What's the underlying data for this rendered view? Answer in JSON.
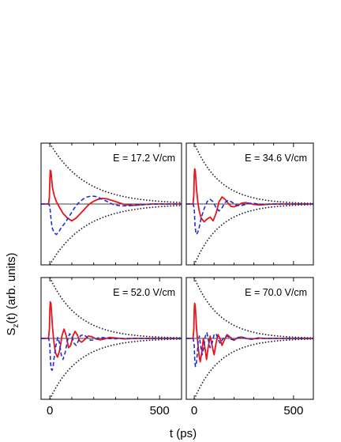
{
  "chart_data": {
    "type": "line",
    "ylabel_main": "S",
    "ylabel_sub": "z",
    "ylabel_rest": "(t) (arb. units)",
    "xlabel": "t (ps)",
    "xlim": [
      -40,
      600
    ],
    "ylim": [
      -1.3,
      1.3
    ],
    "xticks": [
      0,
      500
    ],
    "xtick_labels": [
      "0",
      "500"
    ],
    "line_colors": {
      "solid": "#e8141c",
      "dashed": "#1f2fd6",
      "dotted": "#222222"
    },
    "panels": [
      {
        "label": "E = 17.2 V/cm",
        "envelope": {
          "amplitude": 1.3,
          "decay_ps": 160
        },
        "series": [
          {
            "style": "solid",
            "x": [
              -40,
              -6,
              -2,
              0,
              2,
              5,
              8,
              12,
              20,
              30,
              45,
              60,
              80,
              100,
              120,
              140,
              160,
              180,
              200,
              220,
              240,
              260,
              280,
              300,
              320,
              340,
              360,
              380,
              400,
              430,
              460,
              500,
              550,
              600
            ],
            "y": [
              0.0,
              0.0,
              0.15,
              0.5,
              0.72,
              0.7,
              0.55,
              0.35,
              0.18,
              0.05,
              -0.08,
              -0.2,
              -0.3,
              -0.36,
              -0.3,
              -0.2,
              -0.1,
              0.0,
              0.06,
              0.1,
              0.12,
              0.11,
              0.08,
              0.05,
              0.02,
              -0.01,
              -0.02,
              -0.03,
              -0.02,
              -0.01,
              0.0,
              0.0,
              0.0,
              0.0
            ]
          },
          {
            "style": "dashed",
            "x": [
              -40,
              -5,
              0,
              5,
              10,
              20,
              30,
              40,
              50,
              70,
              90,
              110,
              130,
              150,
              170,
              190,
              210,
              230,
              250,
              270,
              290,
              310,
              330,
              350,
              380,
              410,
              440,
              480,
              520,
              560,
              600
            ],
            "y": [
              0.0,
              0.0,
              -0.05,
              -0.3,
              -0.5,
              -0.62,
              -0.65,
              -0.6,
              -0.52,
              -0.4,
              -0.25,
              -0.1,
              0.02,
              0.1,
              0.15,
              0.17,
              0.16,
              0.12,
              0.08,
              0.03,
              -0.01,
              -0.03,
              -0.04,
              -0.04,
              -0.03,
              -0.02,
              -0.01,
              0.0,
              0.0,
              0.0,
              0.0
            ]
          }
        ]
      },
      {
        "label": "E = 34.6 V/cm",
        "envelope": {
          "amplitude": 1.3,
          "decay_ps": 130
        },
        "series": [
          {
            "style": "solid",
            "x": [
              -40,
              -6,
              -2,
              0,
              2,
              5,
              8,
              12,
              18,
              25,
              35,
              50,
              65,
              80,
              95,
              110,
              125,
              140,
              155,
              170,
              185,
              200,
              220,
              240,
              260,
              280,
              300,
              330,
              360,
              400,
              450,
              500,
              600
            ],
            "y": [
              0.0,
              0.0,
              0.2,
              0.6,
              0.75,
              0.72,
              0.55,
              0.3,
              0.05,
              -0.15,
              -0.3,
              -0.38,
              -0.32,
              -0.28,
              -0.36,
              -0.2,
              0.05,
              0.15,
              0.1,
              0.02,
              -0.05,
              -0.06,
              -0.03,
              0.02,
              0.03,
              0.01,
              -0.01,
              -0.02,
              -0.01,
              0.0,
              0.0,
              0.0,
              0.0
            ]
          },
          {
            "style": "dashed",
            "x": [
              -40,
              -5,
              0,
              4,
              8,
              12,
              18,
              25,
              35,
              50,
              65,
              80,
              95,
              110,
              125,
              140,
              155,
              170,
              190,
              210,
              230,
              250,
              270,
              290,
              320,
              350,
              380,
              420,
              460,
              520,
              600
            ],
            "y": [
              0.0,
              0.0,
              -0.1,
              -0.45,
              -0.6,
              -0.65,
              -0.6,
              -0.5,
              -0.3,
              -0.1,
              0.05,
              0.1,
              0.05,
              -0.08,
              -0.15,
              -0.08,
              0.03,
              0.08,
              0.04,
              -0.02,
              -0.04,
              -0.02,
              0.01,
              0.02,
              0.0,
              -0.01,
              0.0,
              0.0,
              0.0,
              0.0,
              0.0
            ]
          }
        ]
      },
      {
        "label": "E = 52.0 V/cm",
        "envelope": {
          "amplitude": 1.3,
          "decay_ps": 130
        },
        "series": [
          {
            "style": "solid",
            "x": [
              -40,
              -6,
              -2,
              0,
              2,
              5,
              8,
              12,
              18,
              25,
              35,
              45,
              55,
              65,
              75,
              85,
              95,
              105,
              115,
              125,
              135,
              145,
              160,
              175,
              190,
              210,
              230,
              250,
              270,
              300,
              340,
              380,
              440,
              500,
              600
            ],
            "y": [
              0.0,
              0.0,
              0.2,
              0.6,
              0.78,
              0.75,
              0.55,
              0.25,
              -0.05,
              -0.3,
              -0.4,
              -0.25,
              0.05,
              0.2,
              0.05,
              -0.2,
              -0.15,
              0.05,
              0.15,
              0.08,
              -0.05,
              -0.08,
              -0.02,
              0.05,
              0.04,
              -0.01,
              -0.03,
              -0.01,
              0.02,
              0.01,
              -0.01,
              0.0,
              0.0,
              0.0,
              0.0
            ]
          },
          {
            "style": "dashed",
            "x": [
              -40,
              -5,
              0,
              3,
              6,
              10,
              15,
              20,
              28,
              36,
              44,
              52,
              60,
              70,
              80,
              90,
              100,
              110,
              120,
              130,
              140,
              155,
              170,
              185,
              200,
              220,
              240,
              260,
              290,
              320,
              360,
              420,
              500,
              600
            ],
            "y": [
              0.0,
              0.0,
              -0.15,
              -0.5,
              -0.65,
              -0.68,
              -0.6,
              -0.4,
              -0.15,
              0.02,
              -0.1,
              -0.35,
              -0.45,
              -0.3,
              -0.05,
              0.1,
              0.05,
              -0.1,
              -0.15,
              -0.05,
              0.06,
              0.08,
              0.02,
              -0.04,
              -0.03,
              0.01,
              0.02,
              0.0,
              -0.01,
              0.0,
              0.0,
              0.0,
              0.0,
              0.0
            ]
          }
        ]
      },
      {
        "label": "E = 70.0 V/cm",
        "envelope": {
          "amplitude": 1.3,
          "decay_ps": 130
        },
        "series": [
          {
            "style": "solid",
            "x": [
              -40,
              -6,
              -2,
              0,
              2,
              5,
              8,
              12,
              18,
              24,
              30,
              38,
              46,
              54,
              62,
              70,
              80,
              90,
              100,
              110,
              120,
              130,
              140,
              150,
              165,
              180,
              200,
              220,
              240,
              260,
              290,
              320,
              360,
              420,
              500,
              600
            ],
            "y": [
              0.0,
              0.0,
              0.2,
              0.6,
              0.75,
              0.7,
              0.5,
              0.2,
              -0.1,
              -0.35,
              -0.5,
              -0.3,
              0.0,
              -0.2,
              -0.45,
              -0.2,
              0.05,
              -0.15,
              -0.35,
              -0.1,
              0.08,
              0.0,
              -0.15,
              -0.05,
              0.08,
              0.03,
              -0.04,
              0.02,
              0.03,
              0.0,
              -0.02,
              0.01,
              0.0,
              0.0,
              0.0,
              0.0
            ]
          },
          {
            "style": "dashed",
            "x": [
              -40,
              -5,
              0,
              3,
              6,
              10,
              15,
              20,
              26,
              32,
              40,
              48,
              56,
              64,
              72,
              80,
              90,
              100,
              110,
              120,
              130,
              140,
              155,
              170,
              185,
              200,
              220,
              240,
              270,
              300,
              340,
              400,
              480,
              600
            ],
            "y": [
              0.0,
              0.0,
              -0.15,
              -0.5,
              -0.6,
              -0.55,
              -0.35,
              -0.05,
              0.05,
              -0.15,
              -0.35,
              -0.2,
              0.05,
              0.12,
              -0.05,
              -0.2,
              -0.1,
              0.08,
              0.1,
              -0.02,
              -0.1,
              -0.04,
              0.05,
              0.04,
              -0.02,
              -0.03,
              0.01,
              0.02,
              0.0,
              -0.01,
              0.0,
              0.0,
              0.0,
              0.0
            ]
          }
        ]
      }
    ]
  }
}
